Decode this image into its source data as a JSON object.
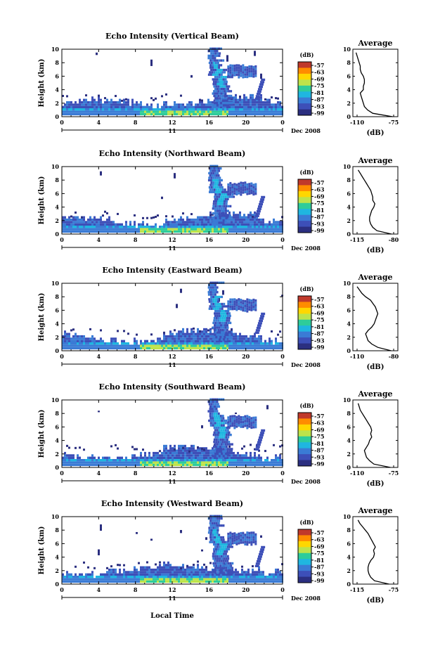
{
  "chart_data": {
    "type": "heatmap",
    "date_label": "Dec 2008",
    "day_label": "11",
    "xlabel": "Local Time",
    "x_ticks": [
      "0",
      "4",
      "8",
      "12",
      "16",
      "20",
      "0"
    ],
    "xlim": [
      0,
      24
    ],
    "ylabel": "Height (km)",
    "y_ticks": [
      "0",
      "2",
      "4",
      "6",
      "8",
      "10"
    ],
    "ylim": [
      0,
      10
    ],
    "colorbar": {
      "unit": "(dB)",
      "ticks": [
        "-57",
        "-63",
        "-69",
        "-75",
        "-81",
        "-87",
        "-93",
        "-99"
      ],
      "colors": [
        "#c0392b",
        "#ff8c00",
        "#ffd700",
        "#bde34a",
        "#2ecc9a",
        "#1fb6e0",
        "#3a7bd5",
        "#3d4fb8",
        "#2b2f80"
      ]
    },
    "average_title": "Average",
    "average_xlabel": "(dB)",
    "panels": [
      {
        "title": "Echo Intensity (Vertical Beam)",
        "avg_xticks": [
          "-110",
          "-75"
        ],
        "avg_profile": {
          "heights": [
            0,
            0.5,
            1,
            1.5,
            2,
            2.5,
            3,
            3.5,
            4,
            4.5,
            5,
            5.5,
            6,
            6.5,
            7,
            7.5,
            8,
            8.5,
            9,
            9.5
          ],
          "values": [
            -76,
            -95,
            -100,
            -103,
            -104,
            -105,
            -106,
            -107,
            -104,
            -104,
            -103,
            -103,
            -104,
            -106,
            -107,
            -107,
            -108,
            -109,
            -110,
            -111
          ]
        }
      },
      {
        "title": "Echo Intensity (Northward Beam)",
        "avg_xticks": [
          "-115",
          "-80"
        ],
        "avg_profile": {
          "heights": [
            0,
            0.5,
            1,
            1.5,
            2,
            2.5,
            3,
            3.5,
            4,
            4.5,
            5,
            5.5,
            6,
            6.5,
            7,
            7.5,
            8,
            8.5,
            9,
            9.5
          ],
          "values": [
            -82,
            -96,
            -100,
            -102,
            -103,
            -103,
            -102,
            -101,
            -99,
            -98,
            -100,
            -100,
            -101,
            -102,
            -104,
            -106,
            -108,
            -110,
            -112,
            -114
          ]
        }
      },
      {
        "title": "Echo Intensity (Eastward Beam)",
        "avg_xticks": [
          "-110",
          "-80"
        ],
        "avg_profile": {
          "heights": [
            0,
            0.5,
            1,
            1.5,
            2,
            2.5,
            3,
            3.5,
            4,
            4.5,
            5,
            5.5,
            6,
            6.5,
            7,
            7.5,
            8,
            8.5,
            9,
            9.5
          ],
          "values": [
            -82,
            -93,
            -98,
            -101,
            -102,
            -103,
            -101,
            -98,
            -96,
            -95,
            -94,
            -93,
            -94,
            -95,
            -97,
            -99,
            -103,
            -106,
            -108,
            -110
          ]
        }
      },
      {
        "title": "Echo Intensity (Southward Beam)",
        "avg_xticks": [
          "-110",
          "-75"
        ],
        "avg_profile": {
          "heights": [
            0,
            0.5,
            1,
            1.5,
            2,
            2.5,
            3,
            3.5,
            4,
            4.5,
            5,
            5.5,
            6,
            6.5,
            7,
            7.5,
            8,
            8.5,
            9,
            9.5
          ],
          "values": [
            -78,
            -94,
            -98,
            -101,
            -102,
            -103,
            -101,
            -99,
            -98,
            -96,
            -97,
            -96,
            -97,
            -99,
            -101,
            -103,
            -105,
            -107,
            -108,
            -109
          ]
        }
      },
      {
        "title": "Echo Intensity (Westward Beam)",
        "avg_xticks": [
          "-115",
          "-75"
        ],
        "avg_profile": {
          "heights": [
            0,
            0.5,
            1,
            1.5,
            2,
            2.5,
            3,
            3.5,
            4,
            4.5,
            5,
            5.5,
            6,
            6.5,
            7,
            7.5,
            8,
            8.5,
            9,
            9.5
          ],
          "values": [
            -80,
            -96,
            -100,
            -102,
            -103,
            -103,
            -102,
            -100,
            -97,
            -96,
            -97,
            -95,
            -97,
            -99,
            -101,
            -103,
            -106,
            -109,
            -112,
            -114
          ]
        }
      }
    ]
  }
}
